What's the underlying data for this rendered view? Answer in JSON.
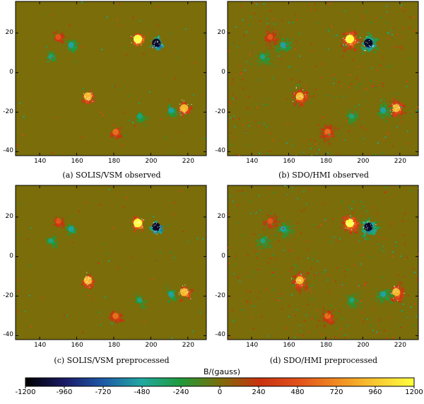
{
  "figure": {
    "background_color": "#7a6d0a",
    "panels": [
      {
        "id": "a",
        "caption": "(a) SOLIS/VSM observed",
        "density": "sparse"
      },
      {
        "id": "b",
        "caption": "(b) SDO/HMI observed",
        "density": "dense"
      },
      {
        "id": "c",
        "caption": "(c) SOLIS/VSM preprocessed",
        "density": "sparse"
      },
      {
        "id": "d",
        "caption": "(d) SDO/HMI preprocessed",
        "density": "dense"
      }
    ],
    "x_ticks": [
      "140",
      "160",
      "180",
      "200",
      "220"
    ],
    "y_ticks": [
      "20",
      "0",
      "-20",
      "-40"
    ],
    "colorbar": {
      "title": "B/(gauss)",
      "ticks": [
        "-1200",
        "-960",
        "-720",
        "-480",
        "-240",
        "0",
        "240",
        "480",
        "720",
        "960",
        "1200"
      ],
      "stops": [
        "#000000",
        "#1a1a66",
        "#1e5aa8",
        "#20a8a0",
        "#1f9a3a",
        "#7a6d0a",
        "#c83210",
        "#e0501a",
        "#f08a20",
        "#f8c830",
        "#ffff40"
      ]
    }
  },
  "chart_data": {
    "type": "heatmap",
    "title": "",
    "x_range": [
      127,
      230
    ],
    "y_range": [
      -42,
      36
    ],
    "x_ticks": [
      140,
      160,
      180,
      200,
      220
    ],
    "y_ticks": [
      20,
      0,
      -20,
      -40
    ],
    "value_label": "B/(gauss)",
    "value_range": [
      -1200,
      1200
    ],
    "sources": [
      {
        "x": 193,
        "y": 17,
        "polarity": "positive",
        "strength": 1200
      },
      {
        "x": 203,
        "y": 15,
        "polarity": "negative",
        "strength": -1100
      },
      {
        "x": 150,
        "y": 18,
        "polarity": "positive",
        "strength": 500
      },
      {
        "x": 157,
        "y": 14,
        "polarity": "negative",
        "strength": -500
      },
      {
        "x": 146,
        "y": 8,
        "polarity": "negative",
        "strength": -400
      },
      {
        "x": 166,
        "y": -12,
        "polarity": "positive",
        "strength": 900
      },
      {
        "x": 218,
        "y": -18,
        "polarity": "positive",
        "strength": 900
      },
      {
        "x": 211,
        "y": -19,
        "polarity": "negative",
        "strength": -500
      },
      {
        "x": 181,
        "y": -30,
        "polarity": "positive",
        "strength": 600
      },
      {
        "x": 194,
        "y": -22,
        "polarity": "negative",
        "strength": -400
      }
    ]
  }
}
